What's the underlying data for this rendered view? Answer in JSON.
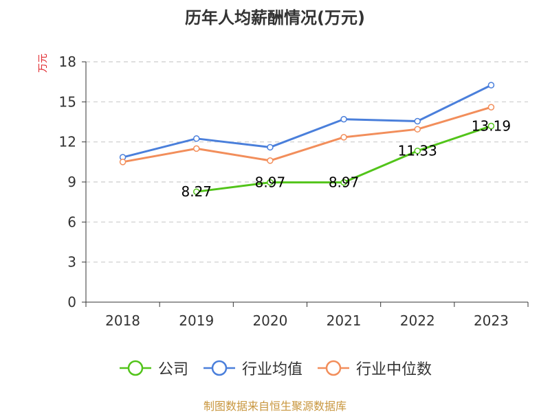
{
  "chart_data": {
    "type": "line",
    "title": "历年人均薪酬情况(万元)",
    "ylabel": "万元",
    "categories": [
      "2018",
      "2019",
      "2020",
      "2021",
      "2022",
      "2023"
    ],
    "ylim": [
      0,
      18
    ],
    "yticks": [
      0,
      3,
      6,
      9,
      12,
      15,
      18
    ],
    "grid": true,
    "legend_position": "bottom",
    "series": [
      {
        "name": "公司",
        "color": "#52c41a",
        "values": [
          null,
          8.27,
          8.97,
          8.97,
          11.33,
          13.19
        ],
        "labels": [
          "",
          "8.27",
          "8.97",
          "8.97",
          "11.33",
          "13.19"
        ]
      },
      {
        "name": "行业均值",
        "color": "#4a7fdb",
        "values": [
          10.85,
          12.25,
          11.6,
          13.7,
          13.55,
          16.25
        ]
      },
      {
        "name": "行业中位数",
        "color": "#f28e5b",
        "values": [
          10.5,
          11.5,
          10.6,
          12.35,
          12.95,
          14.6
        ]
      }
    ]
  },
  "footer": "制图数据来自恒生聚源数据库"
}
